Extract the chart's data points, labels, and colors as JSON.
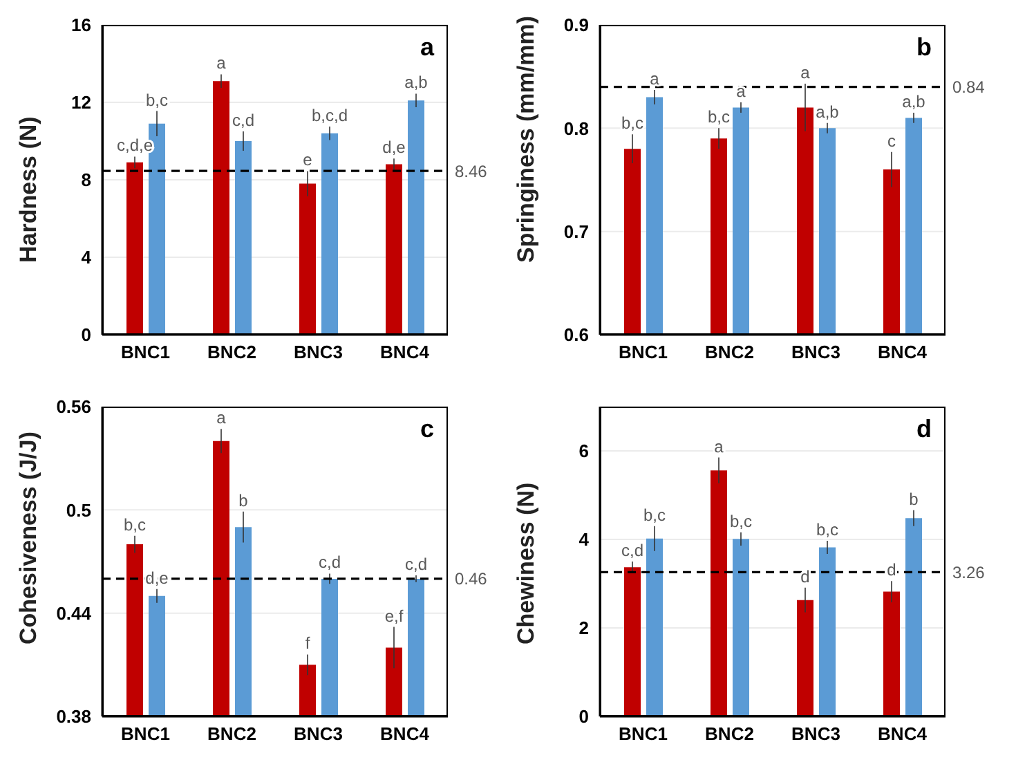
{
  "chart_data": [
    {
      "type": "bar",
      "ylabel": "Hardness (N)",
      "annotations": [
        "a"
      ],
      "categories": [
        "BNC1",
        "BNC2",
        "BNC3",
        "BNC4"
      ],
      "ylim": [
        0,
        16
      ],
      "yticks": [
        0,
        4,
        8,
        12,
        16
      ],
      "grid": "y",
      "ref_lines": [
        {
          "axis": "y",
          "value": 8.46,
          "label": "8.46",
          "line_style": "dashed"
        }
      ],
      "series": [
        {
          "color": "#c00000",
          "values": [
            8.9,
            13.1,
            7.8,
            8.8
          ],
          "errors": [
            0.3,
            0.35,
            0.65,
            0.3
          ],
          "value_labels": [
            "c,d,e",
            "a",
            "e",
            "d,e"
          ]
        },
        {
          "color": "#5b9bd5",
          "values": [
            10.9,
            10.0,
            10.4,
            12.1
          ],
          "errors": [
            0.65,
            0.5,
            0.35,
            0.35
          ],
          "value_labels": [
            "b,c",
            "c,d",
            "b,c,d",
            "a,b"
          ]
        }
      ]
    },
    {
      "type": "bar",
      "ylabel": "Springiness (mm/mm)",
      "annotations": [
        "b"
      ],
      "categories": [
        "BNC1",
        "BNC2",
        "BNC3",
        "BNC4"
      ],
      "ylim": [
        0.6,
        0.9
      ],
      "yticks": [
        0.6,
        0.7,
        0.8,
        0.9
      ],
      "grid": "y",
      "ref_lines": [
        {
          "axis": "y",
          "value": 0.84,
          "label": "0.84",
          "line_style": "dashed"
        }
      ],
      "series": [
        {
          "color": "#c00000",
          "values": [
            0.78,
            0.79,
            0.82,
            0.76
          ],
          "errors": [
            0.014,
            0.01,
            0.023,
            0.017
          ],
          "value_labels": [
            "b,c",
            "b,c",
            "a",
            "c"
          ]
        },
        {
          "color": "#5b9bd5",
          "values": [
            0.83,
            0.82,
            0.8,
            0.81
          ],
          "errors": [
            0.007,
            0.005,
            0.005,
            0.005
          ],
          "value_labels": [
            "a",
            "a",
            "a,b",
            "a,b"
          ]
        }
      ]
    },
    {
      "type": "bar",
      "ylabel": "Cohesiveness  (J/J)",
      "annotations": [
        "c"
      ],
      "categories": [
        "BNC1",
        "BNC2",
        "BNC3",
        "BNC4"
      ],
      "ylim": [
        0.38,
        0.56
      ],
      "yticks": [
        0.38,
        0.44,
        0.5,
        0.56
      ],
      "grid": "y",
      "ref_lines": [
        {
          "axis": "y",
          "value": 0.46,
          "label": "0.46",
          "line_style": "dashed"
        }
      ],
      "series": [
        {
          "color": "#c00000",
          "values": [
            0.48,
            0.54,
            0.41,
            0.42
          ],
          "errors": [
            0.005,
            0.007,
            0.006,
            0.012
          ],
          "value_labels": [
            "b,c",
            "a",
            "f",
            "e,f"
          ]
        },
        {
          "color": "#5b9bd5",
          "values": [
            0.45,
            0.49,
            0.46,
            0.46
          ],
          "errors": [
            0.004,
            0.009,
            0.003,
            0.002
          ],
          "value_labels": [
            "d,e",
            "b",
            "c,d",
            "c,d"
          ]
        }
      ]
    },
    {
      "type": "bar",
      "ylabel": "Chewiness  (N)",
      "annotations": [
        "d"
      ],
      "categories": [
        "BNC1",
        "BNC2",
        "BNC3",
        "BNC4"
      ],
      "ylim": [
        0,
        7
      ],
      "yticks": [
        0,
        2,
        4,
        6
      ],
      "grid": "y",
      "ref_lines": [
        {
          "axis": "y",
          "value": 3.26,
          "label": "3.26",
          "line_style": "dashed"
        }
      ],
      "series": [
        {
          "color": "#c00000",
          "values": [
            3.37,
            5.56,
            2.63,
            2.82
          ],
          "errors": [
            0.13,
            0.29,
            0.28,
            0.24
          ],
          "value_labels": [
            "c,d",
            "a",
            "d",
            "d"
          ]
        },
        {
          "color": "#5b9bd5",
          "values": [
            4.02,
            4.01,
            3.82,
            4.48
          ],
          "errors": [
            0.28,
            0.15,
            0.15,
            0.18
          ],
          "value_labels": [
            "b,c",
            "b,c",
            "b,c",
            "b"
          ]
        }
      ]
    }
  ]
}
